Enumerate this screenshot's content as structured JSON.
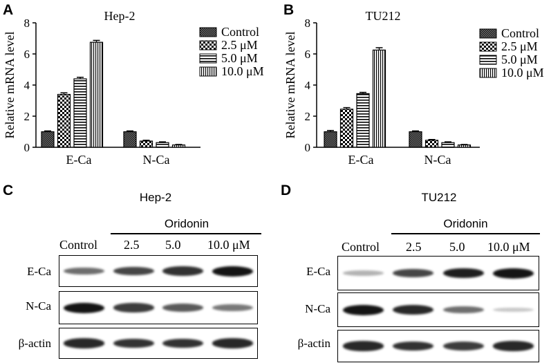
{
  "panels": {
    "a": {
      "letter": "A"
    },
    "b": {
      "letter": "B"
    },
    "c": {
      "letter": "C",
      "title": "Hep-2",
      "treatment": "Oridonin",
      "lanes": [
        "Control",
        "2.5",
        "5.0",
        "10.0 μM"
      ],
      "rows": [
        "E-Ca",
        "N-Ca",
        "β-actin"
      ]
    },
    "d": {
      "letter": "D",
      "title": "TU212",
      "treatment": "Oridonin",
      "lanes": [
        "Control",
        "2.5",
        "5.0",
        "10.0 μM"
      ],
      "rows": [
        "E-Ca",
        "N-Ca",
        "β-actin"
      ]
    }
  },
  "blot_intensity": {
    "hep2": {
      "E-Ca": [
        0.55,
        0.75,
        0.85,
        1.0
      ],
      "N-Ca": [
        1.0,
        0.8,
        0.65,
        0.5
      ],
      "β-actin": [
        0.9,
        0.85,
        0.85,
        0.9
      ]
    },
    "tu212": {
      "E-Ca": [
        0.2,
        0.75,
        0.95,
        1.0
      ],
      "N-Ca": [
        1.0,
        0.9,
        0.55,
        0.1
      ],
      "β-actin": [
        0.9,
        0.85,
        0.8,
        0.9
      ]
    }
  },
  "chart_data": [
    {
      "type": "bar",
      "title": "Hep-2",
      "ylabel": "Relative mRNA level",
      "ylim": [
        0,
        8
      ],
      "yticks": [
        "0",
        "2",
        "4",
        "6",
        "8"
      ],
      "categories": [
        "E-Ca",
        "N-Ca"
      ],
      "legend_position": "top-right",
      "series": [
        {
          "name": "Control",
          "values": [
            1.0,
            1.0
          ],
          "errors": [
            0.05,
            0.05
          ]
        },
        {
          "name": "2.5 μM",
          "values": [
            3.4,
            0.4
          ],
          "errors": [
            0.1,
            0.05
          ]
        },
        {
          "name": "5.0 μM",
          "values": [
            4.4,
            0.3
          ],
          "errors": [
            0.1,
            0.05
          ]
        },
        {
          "name": "10.0 μM",
          "values": [
            6.75,
            0.15
          ],
          "errors": [
            0.12,
            0.03
          ]
        }
      ]
    },
    {
      "type": "bar",
      "title": "TU212",
      "ylabel": "Relative mRNA level",
      "ylim": [
        0,
        8
      ],
      "yticks": [
        "0",
        "2",
        "4",
        "6",
        "8"
      ],
      "categories": [
        "E-Ca",
        "N-Ca"
      ],
      "legend_position": "top-right",
      "series": [
        {
          "name": "Control",
          "values": [
            1.0,
            1.0
          ],
          "errors": [
            0.08,
            0.05
          ]
        },
        {
          "name": "2.5 μM",
          "values": [
            2.45,
            0.45
          ],
          "errors": [
            0.1,
            0.05
          ]
        },
        {
          "name": "5.0 μM",
          "values": [
            3.45,
            0.3
          ],
          "errors": [
            0.08,
            0.05
          ]
        },
        {
          "name": "10.0 μM",
          "values": [
            6.25,
            0.15
          ],
          "errors": [
            0.15,
            0.03
          ]
        }
      ]
    }
  ]
}
